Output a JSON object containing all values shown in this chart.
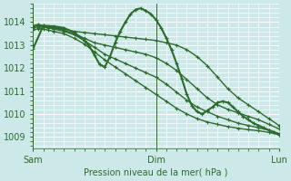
{
  "bg_color": "#cce8e8",
  "grid_color": "#ffffff",
  "line_color": "#2d6a2d",
  "marker_color": "#2d6a2d",
  "tick_label_color": "#2d6a2d",
  "title": "Pression niveau de la mer( hPa )",
  "ylim": [
    1008.5,
    1014.8
  ],
  "yticks": [
    1009,
    1010,
    1011,
    1012,
    1013,
    1014
  ],
  "xlim": [
    0,
    48
  ],
  "xtick_positions": [
    0,
    24,
    48
  ],
  "xtick_labels": [
    "Sam",
    "Dim",
    "Lun"
  ],
  "vlines": [
    0,
    24,
    48
  ],
  "series": [
    {
      "x": [
        0,
        1,
        2,
        3,
        4,
        5,
        6,
        8,
        10,
        12,
        14,
        16,
        18,
        20,
        22,
        24,
        26,
        28,
        30,
        32,
        34,
        36,
        38,
        40,
        42,
        44,
        46,
        48
      ],
      "y": [
        1013.85,
        1013.9,
        1013.85,
        1013.8,
        1013.78,
        1013.75,
        1013.7,
        1013.6,
        1013.55,
        1013.5,
        1013.45,
        1013.4,
        1013.35,
        1013.3,
        1013.25,
        1013.2,
        1013.1,
        1013.0,
        1012.8,
        1012.5,
        1012.1,
        1011.6,
        1011.1,
        1010.7,
        1010.4,
        1010.1,
        1009.8,
        1009.5
      ],
      "lw": 1.0
    },
    {
      "x": [
        0,
        1,
        2,
        3,
        4,
        6,
        8,
        10,
        12,
        14,
        16,
        18,
        20,
        22,
        24,
        26,
        28,
        30,
        32,
        34,
        36,
        38,
        40,
        42,
        44,
        46,
        48
      ],
      "y": [
        1013.8,
        1013.85,
        1013.83,
        1013.8,
        1013.75,
        1013.65,
        1013.5,
        1013.3,
        1013.1,
        1013.0,
        1012.9,
        1012.8,
        1012.7,
        1012.6,
        1012.45,
        1012.2,
        1011.9,
        1011.5,
        1011.1,
        1010.7,
        1010.4,
        1010.2,
        1010.05,
        1009.9,
        1009.75,
        1009.55,
        1009.35
      ],
      "lw": 1.0
    },
    {
      "x": [
        0,
        1,
        2,
        3,
        4,
        6,
        8,
        10,
        12,
        14,
        16,
        18,
        20,
        22,
        24,
        26,
        28,
        30,
        32,
        34,
        36,
        38,
        40,
        42,
        44,
        46,
        48
      ],
      "y": [
        1013.75,
        1013.8,
        1013.78,
        1013.75,
        1013.7,
        1013.6,
        1013.45,
        1013.2,
        1012.9,
        1012.6,
        1012.4,
        1012.2,
        1012.0,
        1011.8,
        1011.6,
        1011.3,
        1010.95,
        1010.6,
        1010.3,
        1010.1,
        1009.9,
        1009.75,
        1009.6,
        1009.5,
        1009.4,
        1009.3,
        1009.15
      ],
      "lw": 1.0
    },
    {
      "x": [
        0,
        1,
        2,
        3,
        4,
        6,
        8,
        10,
        12,
        14,
        16,
        18,
        20,
        22,
        24,
        26,
        28,
        30,
        32,
        34,
        36,
        38,
        40,
        42,
        44,
        46,
        48
      ],
      "y": [
        1013.65,
        1013.72,
        1013.7,
        1013.65,
        1013.6,
        1013.5,
        1013.3,
        1013.05,
        1012.7,
        1012.35,
        1012.05,
        1011.75,
        1011.45,
        1011.15,
        1010.85,
        1010.55,
        1010.25,
        1010.0,
        1009.8,
        1009.65,
        1009.55,
        1009.45,
        1009.38,
        1009.32,
        1009.27,
        1009.2,
        1009.1
      ],
      "lw": 1.0
    },
    {
      "x": [
        0,
        2,
        4,
        6,
        8,
        10,
        11,
        12,
        13,
        14,
        15,
        16,
        17,
        18,
        19,
        20,
        21,
        22,
        23,
        24,
        25,
        26,
        27,
        28,
        29,
        30,
        31,
        32,
        33,
        34,
        35,
        36,
        37,
        38,
        39,
        40,
        41,
        42,
        43,
        44,
        45,
        46,
        47,
        48
      ],
      "y": [
        1012.85,
        1013.85,
        1013.82,
        1013.75,
        1013.55,
        1013.2,
        1012.95,
        1012.55,
        1012.15,
        1012.05,
        1012.5,
        1013.1,
        1013.6,
        1014.0,
        1014.35,
        1014.55,
        1014.6,
        1014.5,
        1014.35,
        1014.1,
        1013.75,
        1013.3,
        1012.8,
        1012.2,
        1011.55,
        1010.85,
        1010.35,
        1010.1,
        1010.0,
        1010.15,
        1010.3,
        1010.5,
        1010.55,
        1010.5,
        1010.3,
        1010.1,
        1009.9,
        1009.75,
        1009.6,
        1009.5,
        1009.4,
        1009.3,
        1009.2,
        1009.1
      ],
      "lw": 1.5
    }
  ]
}
